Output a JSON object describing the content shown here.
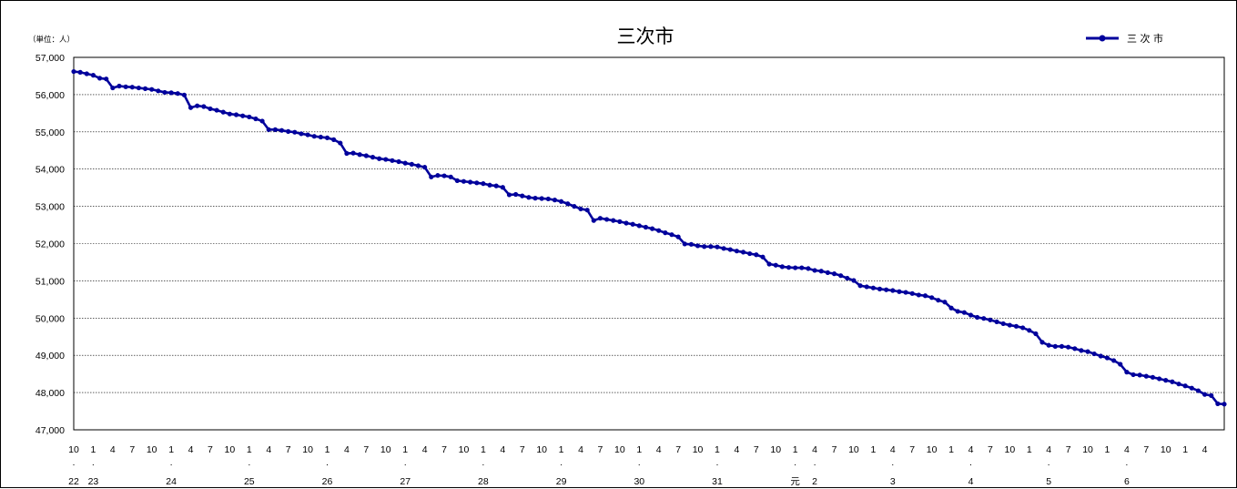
{
  "chart_data": {
    "type": "line",
    "title": "三次市",
    "unit_label": "（単位：人）",
    "ylim": [
      47000,
      57000
    ],
    "y_ticks": [
      "57,000",
      "56,000",
      "55,000",
      "54,000",
      "53,000",
      "52,000",
      "51,000",
      "50,000",
      "49,000",
      "48,000",
      "47,000"
    ],
    "grid": true,
    "legend_position": "top-right",
    "series": [
      {
        "name": "三 次 市",
        "color": "#00009c",
        "values": [
          56620,
          56600,
          56560,
          56520,
          56440,
          56420,
          56180,
          56230,
          56210,
          56200,
          56180,
          56160,
          56140,
          56100,
          56060,
          56050,
          56030,
          55990,
          55650,
          55700,
          55680,
          55620,
          55580,
          55530,
          55480,
          55460,
          55430,
          55400,
          55350,
          55290,
          55060,
          55060,
          55040,
          55010,
          54990,
          54950,
          54920,
          54880,
          54860,
          54840,
          54790,
          54700,
          54420,
          54430,
          54390,
          54360,
          54320,
          54280,
          54260,
          54230,
          54200,
          54160,
          54130,
          54090,
          54050,
          53790,
          53830,
          53820,
          53790,
          53690,
          53670,
          53650,
          53630,
          53610,
          53570,
          53550,
          53510,
          53310,
          53320,
          53280,
          53240,
          53220,
          53210,
          53200,
          53170,
          53130,
          53070,
          53000,
          52930,
          52900,
          52620,
          52680,
          52650,
          52620,
          52590,
          52550,
          52520,
          52480,
          52440,
          52400,
          52350,
          52290,
          52240,
          52180,
          51990,
          51980,
          51940,
          51920,
          51920,
          51910,
          51870,
          51840,
          51800,
          51770,
          51730,
          51700,
          51640,
          51450,
          51420,
          51380,
          51360,
          51350,
          51350,
          51330,
          51280,
          51260,
          51220,
          51190,
          51140,
          51070,
          51010,
          50870,
          50840,
          50810,
          50780,
          50760,
          50740,
          50710,
          50690,
          50660,
          50620,
          50600,
          50550,
          50480,
          50430,
          50270,
          50180,
          50150,
          50080,
          50020,
          49990,
          49950,
          49900,
          49850,
          49810,
          49780,
          49740,
          49670,
          49580,
          49350,
          49270,
          49240,
          49240,
          49220,
          49180,
          49130,
          49100,
          49040,
          48980,
          48930,
          48860,
          48760,
          48550,
          48480,
          48470,
          48440,
          48410,
          48370,
          48330,
          48290,
          48230,
          48180,
          48120,
          48050,
          47950,
          47920,
          47700,
          47690
        ]
      }
    ],
    "x_month_labels": [
      "10",
      "1",
      "4",
      "7",
      "10",
      "1",
      "4",
      "7",
      "10",
      "1",
      "4",
      "7",
      "10",
      "1",
      "4",
      "7",
      "10",
      "1",
      "4",
      "7",
      "10",
      "1",
      "4",
      "7",
      "10",
      "1",
      "4",
      "7",
      "10",
      "1",
      "4",
      "7",
      "10",
      "1",
      "4",
      "7",
      "10",
      "1",
      "4",
      "7",
      "10",
      "1",
      "4",
      "7",
      "10",
      "1",
      "4",
      "7",
      "10",
      "1",
      "4",
      "7",
      "10",
      "1",
      "4",
      "7",
      "10",
      "1",
      "4"
    ],
    "x_year_labels": [
      "22",
      "23",
      "24",
      "25",
      "26",
      "27",
      "28",
      "29",
      "30",
      "31",
      "元",
      "2",
      "3",
      "4",
      "5",
      "6"
    ]
  }
}
